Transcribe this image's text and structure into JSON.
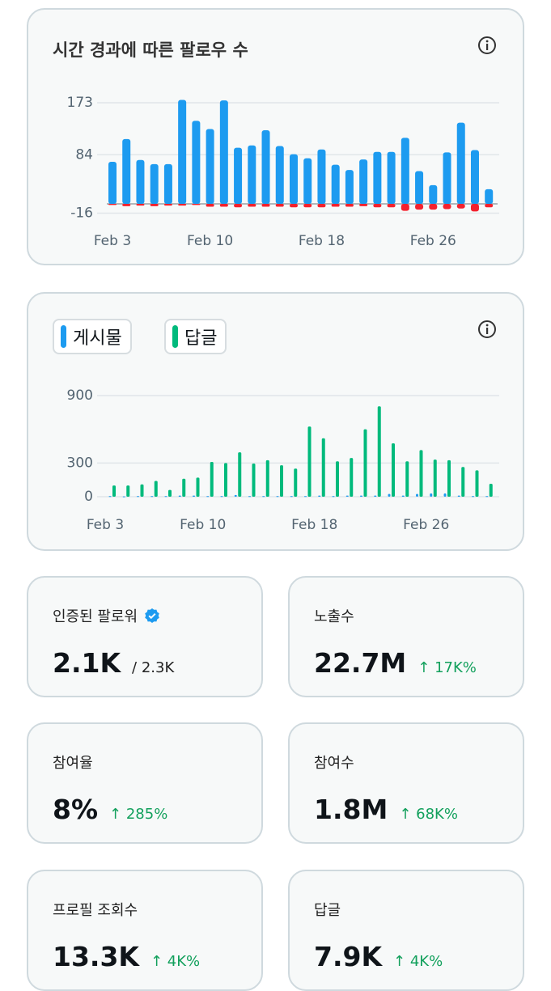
{
  "chart_data": [
    {
      "type": "bar",
      "title": "시간 경과에 따른 팔로우 수",
      "categories": [
        "Feb 3",
        null,
        null,
        null,
        null,
        null,
        null,
        "Feb 10",
        null,
        null,
        null,
        null,
        null,
        null,
        null,
        "Feb 18",
        null,
        null,
        null,
        null,
        null,
        null,
        null,
        "Feb 26",
        null,
        null,
        null,
        null
      ],
      "series": [
        {
          "color": "#1d9bf0",
          "values": [
            72,
            111,
            75,
            68,
            68,
            178,
            142,
            128,
            177,
            96,
            100,
            126,
            99,
            85,
            78,
            93,
            67,
            58,
            76,
            89,
            89,
            113,
            56,
            32,
            88,
            139,
            92,
            25
          ]
        },
        {
          "color": "#f4212e",
          "values": [
            -2,
            -4,
            -3,
            -4,
            -3,
            -3,
            -2,
            -5,
            -5,
            -6,
            -5,
            -5,
            -5,
            -6,
            -6,
            -6,
            -5,
            -5,
            -4,
            -6,
            -6,
            -12,
            -10,
            -10,
            -9,
            -8,
            -13,
            -6
          ]
        }
      ],
      "ylim": [
        -16,
        180
      ],
      "yticks": [
        173,
        84,
        -16
      ],
      "grid": true
    },
    {
      "type": "bar",
      "categories": [
        "Feb 3",
        null,
        null,
        null,
        null,
        null,
        null,
        "Feb 10",
        null,
        null,
        null,
        null,
        null,
        null,
        null,
        "Feb 18",
        null,
        null,
        null,
        null,
        null,
        null,
        null,
        "Feb 26",
        null,
        null,
        null,
        null
      ],
      "series": [
        {
          "name": "게시물",
          "color": "#1d9bf0",
          "values": [
            5,
            3,
            5,
            5,
            5,
            10,
            10,
            5,
            5,
            15,
            5,
            5,
            5,
            5,
            5,
            10,
            5,
            10,
            10,
            10,
            25,
            10,
            25,
            30,
            30,
            10,
            5,
            5
          ]
        },
        {
          "name": "답글",
          "color": "#00ba7c",
          "values": [
            100,
            100,
            110,
            140,
            60,
            160,
            170,
            310,
            300,
            395,
            295,
            325,
            280,
            250,
            625,
            520,
            315,
            345,
            600,
            805,
            475,
            315,
            415,
            330,
            325,
            265,
            235,
            115
          ]
        }
      ],
      "ylim": [
        0,
        900
      ],
      "yticks": [
        900,
        300,
        0
      ],
      "grid": true
    }
  ],
  "cards": [
    {
      "label": "인증된 팔로워",
      "value": "2.1K",
      "total": "/ 2.3K"
    },
    {
      "label": "노출수",
      "value": "22.7M",
      "change": "↑ 17K%"
    },
    {
      "label": "참여율",
      "value": "8%",
      "change": "↑ 285%"
    },
    {
      "label": "참여수",
      "value": "1.8M",
      "change": "↑ 68K%"
    },
    {
      "label": "프로필 조회수",
      "value": "13.3K",
      "change": "↑ 4K%"
    },
    {
      "label": "답글",
      "value": "7.9K",
      "change": "↑ 4K%"
    }
  ]
}
